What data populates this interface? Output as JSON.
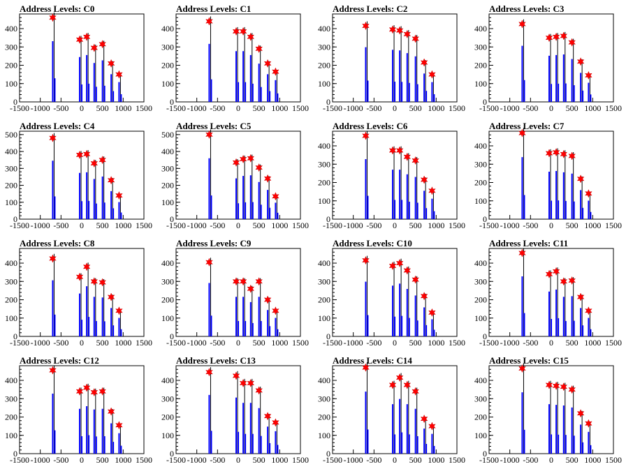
{
  "colors": {
    "histogram": "#0000ff",
    "marker": "#ff0000",
    "frame": "#000000"
  },
  "chart_data": [
    {
      "type": "bar",
      "title": "Address Levels: C0",
      "xlim": [
        -1500,
        1500
      ],
      "ylim": [
        0,
        480
      ],
      "xticks": [
        -1500,
        -1000,
        -500,
        0,
        500,
        1000,
        1500
      ],
      "yticks": [
        0,
        100,
        200,
        300,
        400
      ],
      "peaks": [
        {
          "x": -700,
          "y": 460
        },
        {
          "x": -50,
          "y": 340
        },
        {
          "x": 120,
          "y": 355
        },
        {
          "x": 300,
          "y": 295
        },
        {
          "x": 500,
          "y": 315
        },
        {
          "x": 710,
          "y": 210
        },
        {
          "x": 900,
          "y": 150
        }
      ]
    },
    {
      "type": "bar",
      "title": "Address Levels: C1",
      "xlim": [
        -1500,
        1500
      ],
      "ylim": [
        0,
        480
      ],
      "xticks": [
        -1500,
        -1000,
        -500,
        0,
        500,
        1000,
        1500
      ],
      "yticks": [
        0,
        100,
        200,
        300,
        400
      ],
      "peaks": [
        {
          "x": -700,
          "y": 440
        },
        {
          "x": -50,
          "y": 385
        },
        {
          "x": 120,
          "y": 385
        },
        {
          "x": 300,
          "y": 355
        },
        {
          "x": 500,
          "y": 290
        },
        {
          "x": 710,
          "y": 210
        },
        {
          "x": 900,
          "y": 165
        }
      ]
    },
    {
      "type": "bar",
      "title": "Address Levels: C2",
      "xlim": [
        -1500,
        1500
      ],
      "ylim": [
        0,
        480
      ],
      "xticks": [
        -1500,
        -1000,
        -500,
        0,
        500,
        1000,
        1500
      ],
      "yticks": [
        0,
        100,
        200,
        300,
        400
      ],
      "peaks": [
        {
          "x": -700,
          "y": 415
        },
        {
          "x": -50,
          "y": 395
        },
        {
          "x": 120,
          "y": 390
        },
        {
          "x": 300,
          "y": 370
        },
        {
          "x": 500,
          "y": 345
        },
        {
          "x": 710,
          "y": 215
        },
        {
          "x": 900,
          "y": 150
        }
      ]
    },
    {
      "type": "bar",
      "title": "Address Levels: C3",
      "xlim": [
        -1500,
        1500
      ],
      "ylim": [
        0,
        480
      ],
      "xticks": [
        -1500,
        -1000,
        -500,
        0,
        500,
        1000,
        1500
      ],
      "yticks": [
        0,
        100,
        200,
        300,
        400
      ],
      "peaks": [
        {
          "x": -700,
          "y": 425
        },
        {
          "x": -50,
          "y": 350
        },
        {
          "x": 120,
          "y": 355
        },
        {
          "x": 300,
          "y": 360
        },
        {
          "x": 500,
          "y": 325
        },
        {
          "x": 710,
          "y": 220
        },
        {
          "x": 900,
          "y": 145
        }
      ]
    },
    {
      "type": "bar",
      "title": "Address Levels: C4",
      "xlim": [
        -1500,
        1500
      ],
      "ylim": [
        0,
        520
      ],
      "xticks": [
        -1500,
        -1000,
        -500,
        0,
        500,
        1000,
        1500
      ],
      "yticks": [
        0,
        100,
        200,
        300,
        400,
        500
      ],
      "peaks": [
        {
          "x": -700,
          "y": 480
        },
        {
          "x": -50,
          "y": 380
        },
        {
          "x": 120,
          "y": 385
        },
        {
          "x": 300,
          "y": 330
        },
        {
          "x": 500,
          "y": 350
        },
        {
          "x": 710,
          "y": 230
        },
        {
          "x": 900,
          "y": 140
        }
      ]
    },
    {
      "type": "bar",
      "title": "Address Levels: C5",
      "xlim": [
        -1500,
        1500
      ],
      "ylim": [
        0,
        520
      ],
      "xticks": [
        -1500,
        -1000,
        -500,
        0,
        500,
        1000,
        1500
      ],
      "yticks": [
        0,
        100,
        200,
        300,
        400,
        500
      ],
      "peaks": [
        {
          "x": -700,
          "y": 500
        },
        {
          "x": -50,
          "y": 335
        },
        {
          "x": 120,
          "y": 355
        },
        {
          "x": 300,
          "y": 360
        },
        {
          "x": 500,
          "y": 305
        },
        {
          "x": 710,
          "y": 240
        },
        {
          "x": 900,
          "y": 135
        }
      ]
    },
    {
      "type": "bar",
      "title": "Address Levels: C6",
      "xlim": [
        -1500,
        1500
      ],
      "ylim": [
        0,
        480
      ],
      "xticks": [
        -1500,
        -1000,
        -500,
        0,
        500,
        1000,
        1500
      ],
      "yticks": [
        0,
        100,
        200,
        300,
        400
      ],
      "peaks": [
        {
          "x": -700,
          "y": 455
        },
        {
          "x": -50,
          "y": 375
        },
        {
          "x": 120,
          "y": 375
        },
        {
          "x": 300,
          "y": 340
        },
        {
          "x": 500,
          "y": 320
        },
        {
          "x": 710,
          "y": 215
        },
        {
          "x": 900,
          "y": 155
        }
      ]
    },
    {
      "type": "bar",
      "title": "Address Levels: C7",
      "xlim": [
        -1500,
        1500
      ],
      "ylim": [
        0,
        480
      ],
      "xticks": [
        -1500,
        -1000,
        -500,
        0,
        500,
        1000,
        1500
      ],
      "yticks": [
        0,
        100,
        200,
        300,
        400
      ],
      "peaks": [
        {
          "x": -700,
          "y": 470
        },
        {
          "x": -50,
          "y": 360
        },
        {
          "x": 120,
          "y": 365
        },
        {
          "x": 300,
          "y": 355
        },
        {
          "x": 500,
          "y": 345
        },
        {
          "x": 710,
          "y": 220
        },
        {
          "x": 900,
          "y": 140
        }
      ]
    },
    {
      "type": "bar",
      "title": "Address Levels: C8",
      "xlim": [
        -1500,
        1500
      ],
      "ylim": [
        0,
        480
      ],
      "xticks": [
        -1500,
        -1000,
        -500,
        0,
        500,
        1000,
        1500
      ],
      "yticks": [
        0,
        100,
        200,
        300,
        400
      ],
      "peaks": [
        {
          "x": -700,
          "y": 425
        },
        {
          "x": -50,
          "y": 325
        },
        {
          "x": 120,
          "y": 380
        },
        {
          "x": 300,
          "y": 300
        },
        {
          "x": 500,
          "y": 295
        },
        {
          "x": 710,
          "y": 215
        },
        {
          "x": 900,
          "y": 140
        }
      ]
    },
    {
      "type": "bar",
      "title": "Address Levels: C9",
      "xlim": [
        -1500,
        1500
      ],
      "ylim": [
        0,
        480
      ],
      "xticks": [
        -1500,
        -1000,
        -500,
        0,
        500,
        1000,
        1500
      ],
      "yticks": [
        0,
        100,
        200,
        300,
        400
      ],
      "peaks": [
        {
          "x": -700,
          "y": 405
        },
        {
          "x": -50,
          "y": 300
        },
        {
          "x": 120,
          "y": 300
        },
        {
          "x": 300,
          "y": 260
        },
        {
          "x": 500,
          "y": 300
        },
        {
          "x": 710,
          "y": 200
        },
        {
          "x": 900,
          "y": 140
        }
      ]
    },
    {
      "type": "bar",
      "title": "Address Levels: C10",
      "xlim": [
        -1500,
        1500
      ],
      "ylim": [
        0,
        480
      ],
      "xticks": [
        -1500,
        -1000,
        -500,
        0,
        500,
        1000,
        1500
      ],
      "yticks": [
        0,
        100,
        200,
        300,
        400
      ],
      "peaks": [
        {
          "x": -700,
          "y": 415
        },
        {
          "x": -50,
          "y": 385
        },
        {
          "x": 120,
          "y": 400
        },
        {
          "x": 300,
          "y": 360
        },
        {
          "x": 500,
          "y": 310
        },
        {
          "x": 710,
          "y": 220
        },
        {
          "x": 900,
          "y": 130
        }
      ]
    },
    {
      "type": "bar",
      "title": "Address Levels: C11",
      "xlim": [
        -1500,
        1500
      ],
      "ylim": [
        0,
        480
      ],
      "xticks": [
        -1500,
        -1000,
        -500,
        0,
        500,
        1000,
        1500
      ],
      "yticks": [
        0,
        100,
        200,
        300,
        400
      ],
      "peaks": [
        {
          "x": -700,
          "y": 455
        },
        {
          "x": -50,
          "y": 340
        },
        {
          "x": 120,
          "y": 355
        },
        {
          "x": 300,
          "y": 300
        },
        {
          "x": 500,
          "y": 305
        },
        {
          "x": 710,
          "y": 215
        },
        {
          "x": 900,
          "y": 140
        }
      ]
    },
    {
      "type": "bar",
      "title": "Address Levels: C12",
      "xlim": [
        -1500,
        1500
      ],
      "ylim": [
        0,
        480
      ],
      "xticks": [
        -1500,
        -1000,
        -500,
        0,
        500,
        1000,
        1500
      ],
      "yticks": [
        0,
        100,
        200,
        300,
        400
      ],
      "peaks": [
        {
          "x": -700,
          "y": 455
        },
        {
          "x": -50,
          "y": 340
        },
        {
          "x": 120,
          "y": 360
        },
        {
          "x": 300,
          "y": 335
        },
        {
          "x": 500,
          "y": 340
        },
        {
          "x": 710,
          "y": 230
        },
        {
          "x": 900,
          "y": 155
        }
      ]
    },
    {
      "type": "bar",
      "title": "Address Levels: C13",
      "xlim": [
        -1500,
        1500
      ],
      "ylim": [
        0,
        480
      ],
      "xticks": [
        -1500,
        -1000,
        -500,
        0,
        500,
        1000,
        1500
      ],
      "yticks": [
        0,
        100,
        200,
        300,
        400
      ],
      "peaks": [
        {
          "x": -700,
          "y": 445
        },
        {
          "x": -50,
          "y": 425
        },
        {
          "x": 120,
          "y": 385
        },
        {
          "x": 300,
          "y": 385
        },
        {
          "x": 500,
          "y": 345
        },
        {
          "x": 710,
          "y": 205
        },
        {
          "x": 900,
          "y": 170
        }
      ]
    },
    {
      "type": "bar",
      "title": "Address Levels: C14",
      "xlim": [
        -1500,
        1500
      ],
      "ylim": [
        0,
        480
      ],
      "xticks": [
        -1500,
        -1000,
        -500,
        0,
        500,
        1000,
        1500
      ],
      "yticks": [
        0,
        100,
        200,
        300,
        400
      ],
      "peaks": [
        {
          "x": -700,
          "y": 470
        },
        {
          "x": -50,
          "y": 375
        },
        {
          "x": 120,
          "y": 415
        },
        {
          "x": 300,
          "y": 375
        },
        {
          "x": 500,
          "y": 340
        },
        {
          "x": 710,
          "y": 190
        },
        {
          "x": 900,
          "y": 150
        }
      ]
    },
    {
      "type": "bar",
      "title": "Address Levels: C15",
      "xlim": [
        -1500,
        1500
      ],
      "ylim": [
        0,
        480
      ],
      "xticks": [
        -1500,
        -1000,
        -500,
        0,
        500,
        1000,
        1500
      ],
      "yticks": [
        0,
        100,
        200,
        300,
        400
      ],
      "peaks": [
        {
          "x": -700,
          "y": 465
        },
        {
          "x": -50,
          "y": 375
        },
        {
          "x": 120,
          "y": 370
        },
        {
          "x": 300,
          "y": 365
        },
        {
          "x": 500,
          "y": 350
        },
        {
          "x": 710,
          "y": 220
        },
        {
          "x": 900,
          "y": 165
        }
      ]
    }
  ]
}
